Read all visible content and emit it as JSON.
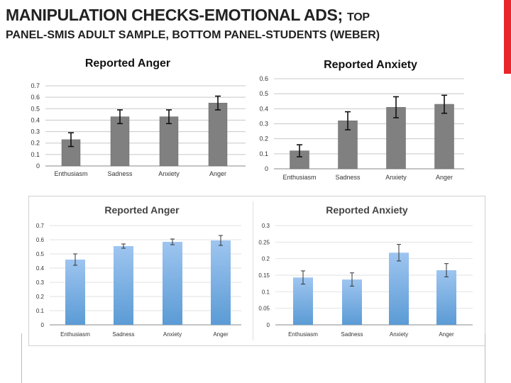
{
  "slide": {
    "title_main": "MANIPULATION CHECKS-EMOTIONAL ADS;",
    "title_tail": "TOP",
    "subtitle": "PANEL-SMIS ADULT SAMPLE, BOTTOM PANEL-STUDENTS (WEBER)",
    "accent_color": "#e8262c"
  },
  "chart_data": [
    {
      "id": "top-anger",
      "type": "bar",
      "title": "Reported Anger",
      "categories": [
        "Enthusiasm",
        "Sadness",
        "Anxiety",
        "Anger"
      ],
      "values": [
        0.23,
        0.43,
        0.43,
        0.55
      ],
      "errors": [
        0.06,
        0.06,
        0.06,
        0.06
      ],
      "ylim": [
        0,
        0.7
      ],
      "yticks": [
        "0",
        "0.1",
        "0.2",
        "0.3",
        "0.4",
        "0.5",
        "0.6",
        "0.7"
      ],
      "grid": true,
      "bar_color": "#808080"
    },
    {
      "id": "top-anxiety",
      "type": "bar",
      "title": "Reported Anxiety",
      "categories": [
        "Enthusiasm",
        "Sadness",
        "Anxiety",
        "Anger"
      ],
      "values": [
        0.12,
        0.32,
        0.41,
        0.43
      ],
      "errors": [
        0.04,
        0.06,
        0.07,
        0.06
      ],
      "ylim": [
        0,
        0.6
      ],
      "yticks": [
        "0",
        "0.1",
        "0.2",
        "0.3",
        "0.4",
        "0.5",
        "0.6"
      ],
      "grid": true,
      "bar_color": "#808080"
    },
    {
      "id": "bottom-anger",
      "type": "bar",
      "title": "Reported Anger",
      "categories": [
        "Enthusiasm",
        "Sadness",
        "Anxiety",
        "Anger"
      ],
      "values": [
        0.46,
        0.555,
        0.585,
        0.595
      ],
      "errors": [
        0.04,
        0.015,
        0.02,
        0.035
      ],
      "ylim": [
        0,
        0.7
      ],
      "yticks": [
        "0",
        "0.1",
        "0.2",
        "0.3",
        "0.4",
        "0.5",
        "0.6",
        "0.7"
      ],
      "grid": true,
      "bar_color": "#5b9bd5"
    },
    {
      "id": "bottom-anxiety",
      "type": "bar",
      "title": "Reported Anxiety",
      "categories": [
        "Enthusiasm",
        "Sadness",
        "Anxiety",
        "Anger"
      ],
      "values": [
        0.143,
        0.137,
        0.218,
        0.165
      ],
      "errors": [
        0.02,
        0.02,
        0.025,
        0.02
      ],
      "ylim": [
        0,
        0.3
      ],
      "yticks": [
        "0",
        "0.05",
        "0.1",
        "0.15",
        "0.2",
        "0.25",
        "0.3"
      ],
      "grid": true,
      "bar_color": "#5b9bd5"
    }
  ]
}
